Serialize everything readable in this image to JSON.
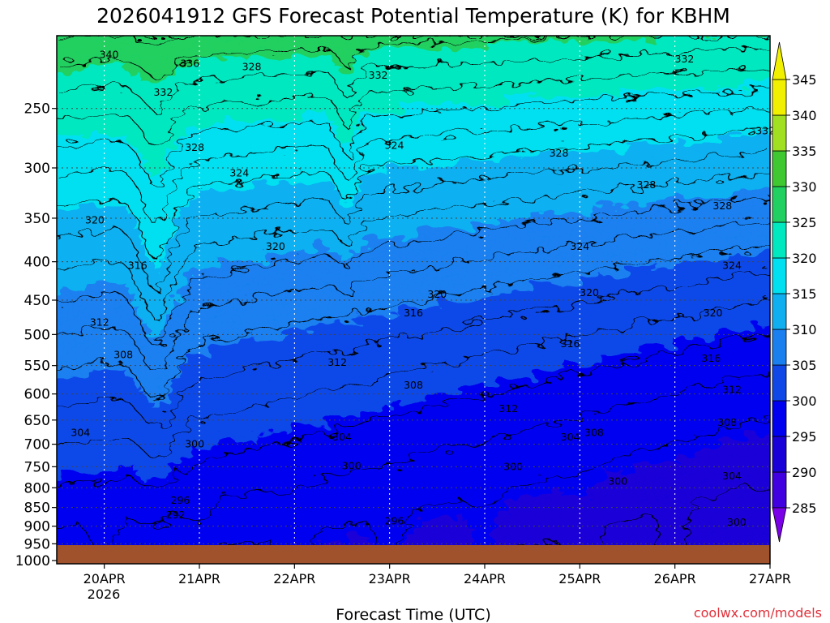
{
  "chart_data": {
    "type": "heatmap",
    "title": "2026041912 GFS Forecast Potential Temperature (K) for KBHM",
    "xlabel": "Forecast Time (UTC)",
    "credit": "coolwx.com/models",
    "x_ticks": [
      "20APR",
      "21APR",
      "22APR",
      "23APR",
      "24APR",
      "25APR",
      "26APR",
      "27APR"
    ],
    "x_year_label": "2026",
    "x_range_days": [
      -0.5,
      7.0
    ],
    "y_ticks": [
      250,
      300,
      350,
      400,
      450,
      500,
      550,
      600,
      650,
      700,
      750,
      800,
      850,
      900,
      950,
      1000
    ],
    "y_range_hpa": [
      200,
      1010
    ],
    "y_scale": "log-pressure",
    "colorbar": {
      "labels": [
        285,
        290,
        295,
        300,
        305,
        310,
        315,
        320,
        325,
        330,
        335,
        340,
        345
      ],
      "colors": [
        "#7a00e8",
        "#4000e0",
        "#1a00d8",
        "#0000f0",
        "#1048e8",
        "#1a80f0",
        "#10b0f0",
        "#00e0f0",
        "#00e8c0",
        "#20d060",
        "#40c830",
        "#a0e020",
        "#f0f000"
      ]
    },
    "ground_color": "#a0522d",
    "contour_labels": [
      {
        "t": 0.05,
        "p": 212,
        "v": "340"
      },
      {
        "t": 0.9,
        "p": 218,
        "v": "336"
      },
      {
        "t": 0.62,
        "p": 238,
        "v": "332"
      },
      {
        "t": 1.55,
        "p": 220,
        "v": "328"
      },
      {
        "t": 2.88,
        "p": 226,
        "v": "332"
      },
      {
        "t": 6.1,
        "p": 215,
        "v": "332"
      },
      {
        "t": 6.95,
        "p": 268,
        "v": "332"
      },
      {
        "t": 0.95,
        "p": 282,
        "v": "328"
      },
      {
        "t": 4.78,
        "p": 287,
        "v": "328"
      },
      {
        "t": 5.7,
        "p": 316,
        "v": "328"
      },
      {
        "t": 6.5,
        "p": 337,
        "v": "328"
      },
      {
        "t": 1.42,
        "p": 305,
        "v": "324"
      },
      {
        "t": 3.05,
        "p": 280,
        "v": "324"
      },
      {
        "t": 5.0,
        "p": 382,
        "v": "324"
      },
      {
        "t": 6.6,
        "p": 405,
        "v": "324"
      },
      {
        "t": -0.1,
        "p": 352,
        "v": "320"
      },
      {
        "t": 1.8,
        "p": 382,
        "v": "320"
      },
      {
        "t": 3.5,
        "p": 442,
        "v": "320"
      },
      {
        "t": 5.1,
        "p": 440,
        "v": "320"
      },
      {
        "t": 6.4,
        "p": 468,
        "v": "320"
      },
      {
        "t": 0.35,
        "p": 405,
        "v": "316"
      },
      {
        "t": 3.25,
        "p": 468,
        "v": "316"
      },
      {
        "t": 4.9,
        "p": 515,
        "v": "316"
      },
      {
        "t": 6.38,
        "p": 538,
        "v": "316"
      },
      {
        "t": -0.05,
        "p": 482,
        "v": "312"
      },
      {
        "t": 2.45,
        "p": 545,
        "v": "312"
      },
      {
        "t": 4.25,
        "p": 628,
        "v": "312"
      },
      {
        "t": 6.6,
        "p": 592,
        "v": "312"
      },
      {
        "t": 0.2,
        "p": 532,
        "v": "308"
      },
      {
        "t": 3.25,
        "p": 584,
        "v": "308"
      },
      {
        "t": 5.15,
        "p": 676,
        "v": "308"
      },
      {
        "t": 6.55,
        "p": 655,
        "v": "308"
      },
      {
        "t": -0.25,
        "p": 676,
        "v": "304"
      },
      {
        "t": 2.5,
        "p": 685,
        "v": "304"
      },
      {
        "t": 4.9,
        "p": 685,
        "v": "304"
      },
      {
        "t": 6.6,
        "p": 772,
        "v": "304"
      },
      {
        "t": 0.95,
        "p": 700,
        "v": "300"
      },
      {
        "t": 2.6,
        "p": 748,
        "v": "300"
      },
      {
        "t": 4.3,
        "p": 750,
        "v": "300"
      },
      {
        "t": 5.4,
        "p": 785,
        "v": "300"
      },
      {
        "t": 6.65,
        "p": 890,
        "v": "300"
      },
      {
        "t": 0.8,
        "p": 832,
        "v": "296"
      },
      {
        "t": 3.05,
        "p": 886,
        "v": "296"
      },
      {
        "t": 0.75,
        "p": 870,
        "v": "292"
      }
    ]
  }
}
